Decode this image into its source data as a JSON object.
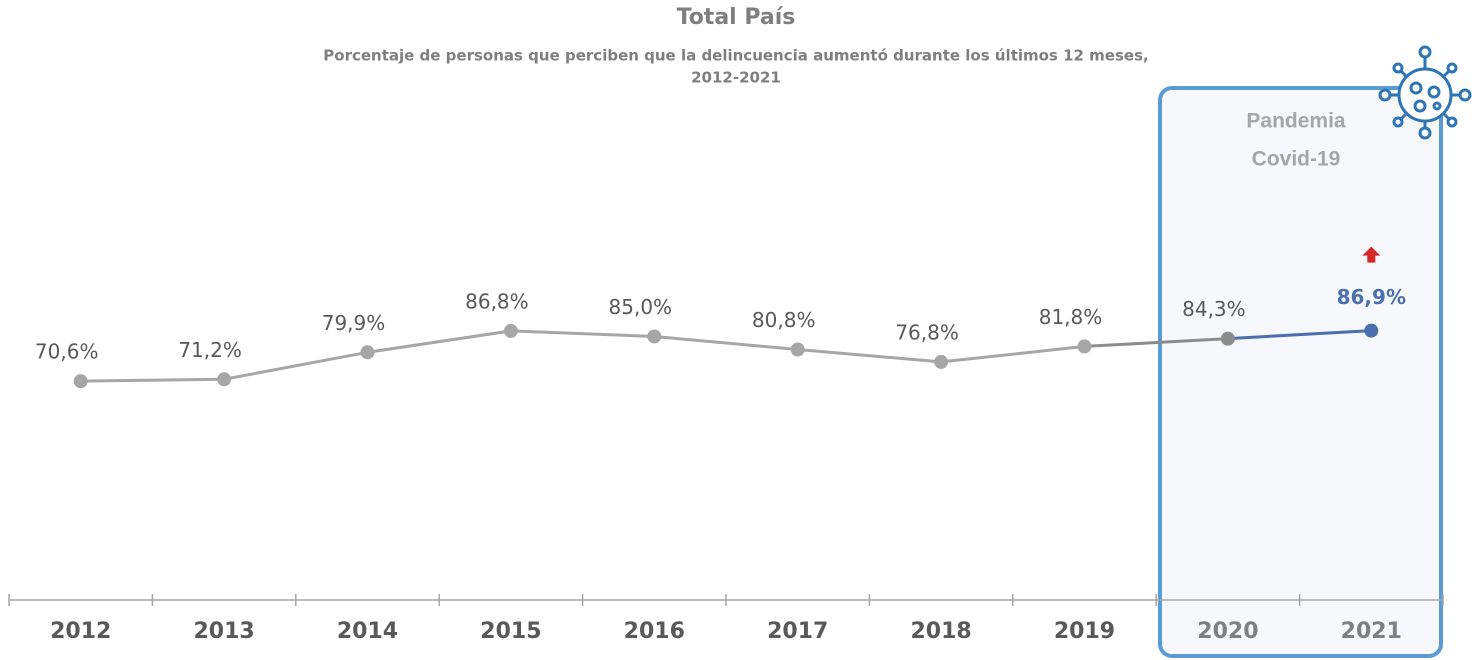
{
  "chart_data": {
    "type": "line",
    "title": "Total País",
    "subtitle": [
      "Porcentaje de personas que perciben que la delincuencia aumentó durante los últimos 12 meses,",
      "2012-2021"
    ],
    "annotation": [
      "Pandemia",
      "Covid-19"
    ],
    "categories": [
      "2012",
      "2013",
      "2014",
      "2015",
      "2016",
      "2017",
      "2018",
      "2019",
      "2020",
      "2021"
    ],
    "series": [
      {
        "name": null,
        "color": "#a6a6a6",
        "values": [
          70.6,
          71.2,
          79.9,
          86.8,
          85.0,
          80.8,
          76.8,
          81.8,
          84.3,
          86.9
        ],
        "value_labels": [
          "70,6%",
          "71,2%",
          "79,9%",
          "86,8%",
          "85,0%",
          "80,8%",
          "76,8%",
          "81,8%",
          "84,3%",
          "86,9%"
        ],
        "point_colors": [
          "#a6a6a6",
          "#a6a6a6",
          "#a6a6a6",
          "#a6a6a6",
          "#a6a6a6",
          "#a6a6a6",
          "#a6a6a6",
          "#a6a6a6",
          "#8c8c8c",
          "#4a6fae"
        ]
      }
    ],
    "ylim": [
      0,
      100
    ]
  }
}
